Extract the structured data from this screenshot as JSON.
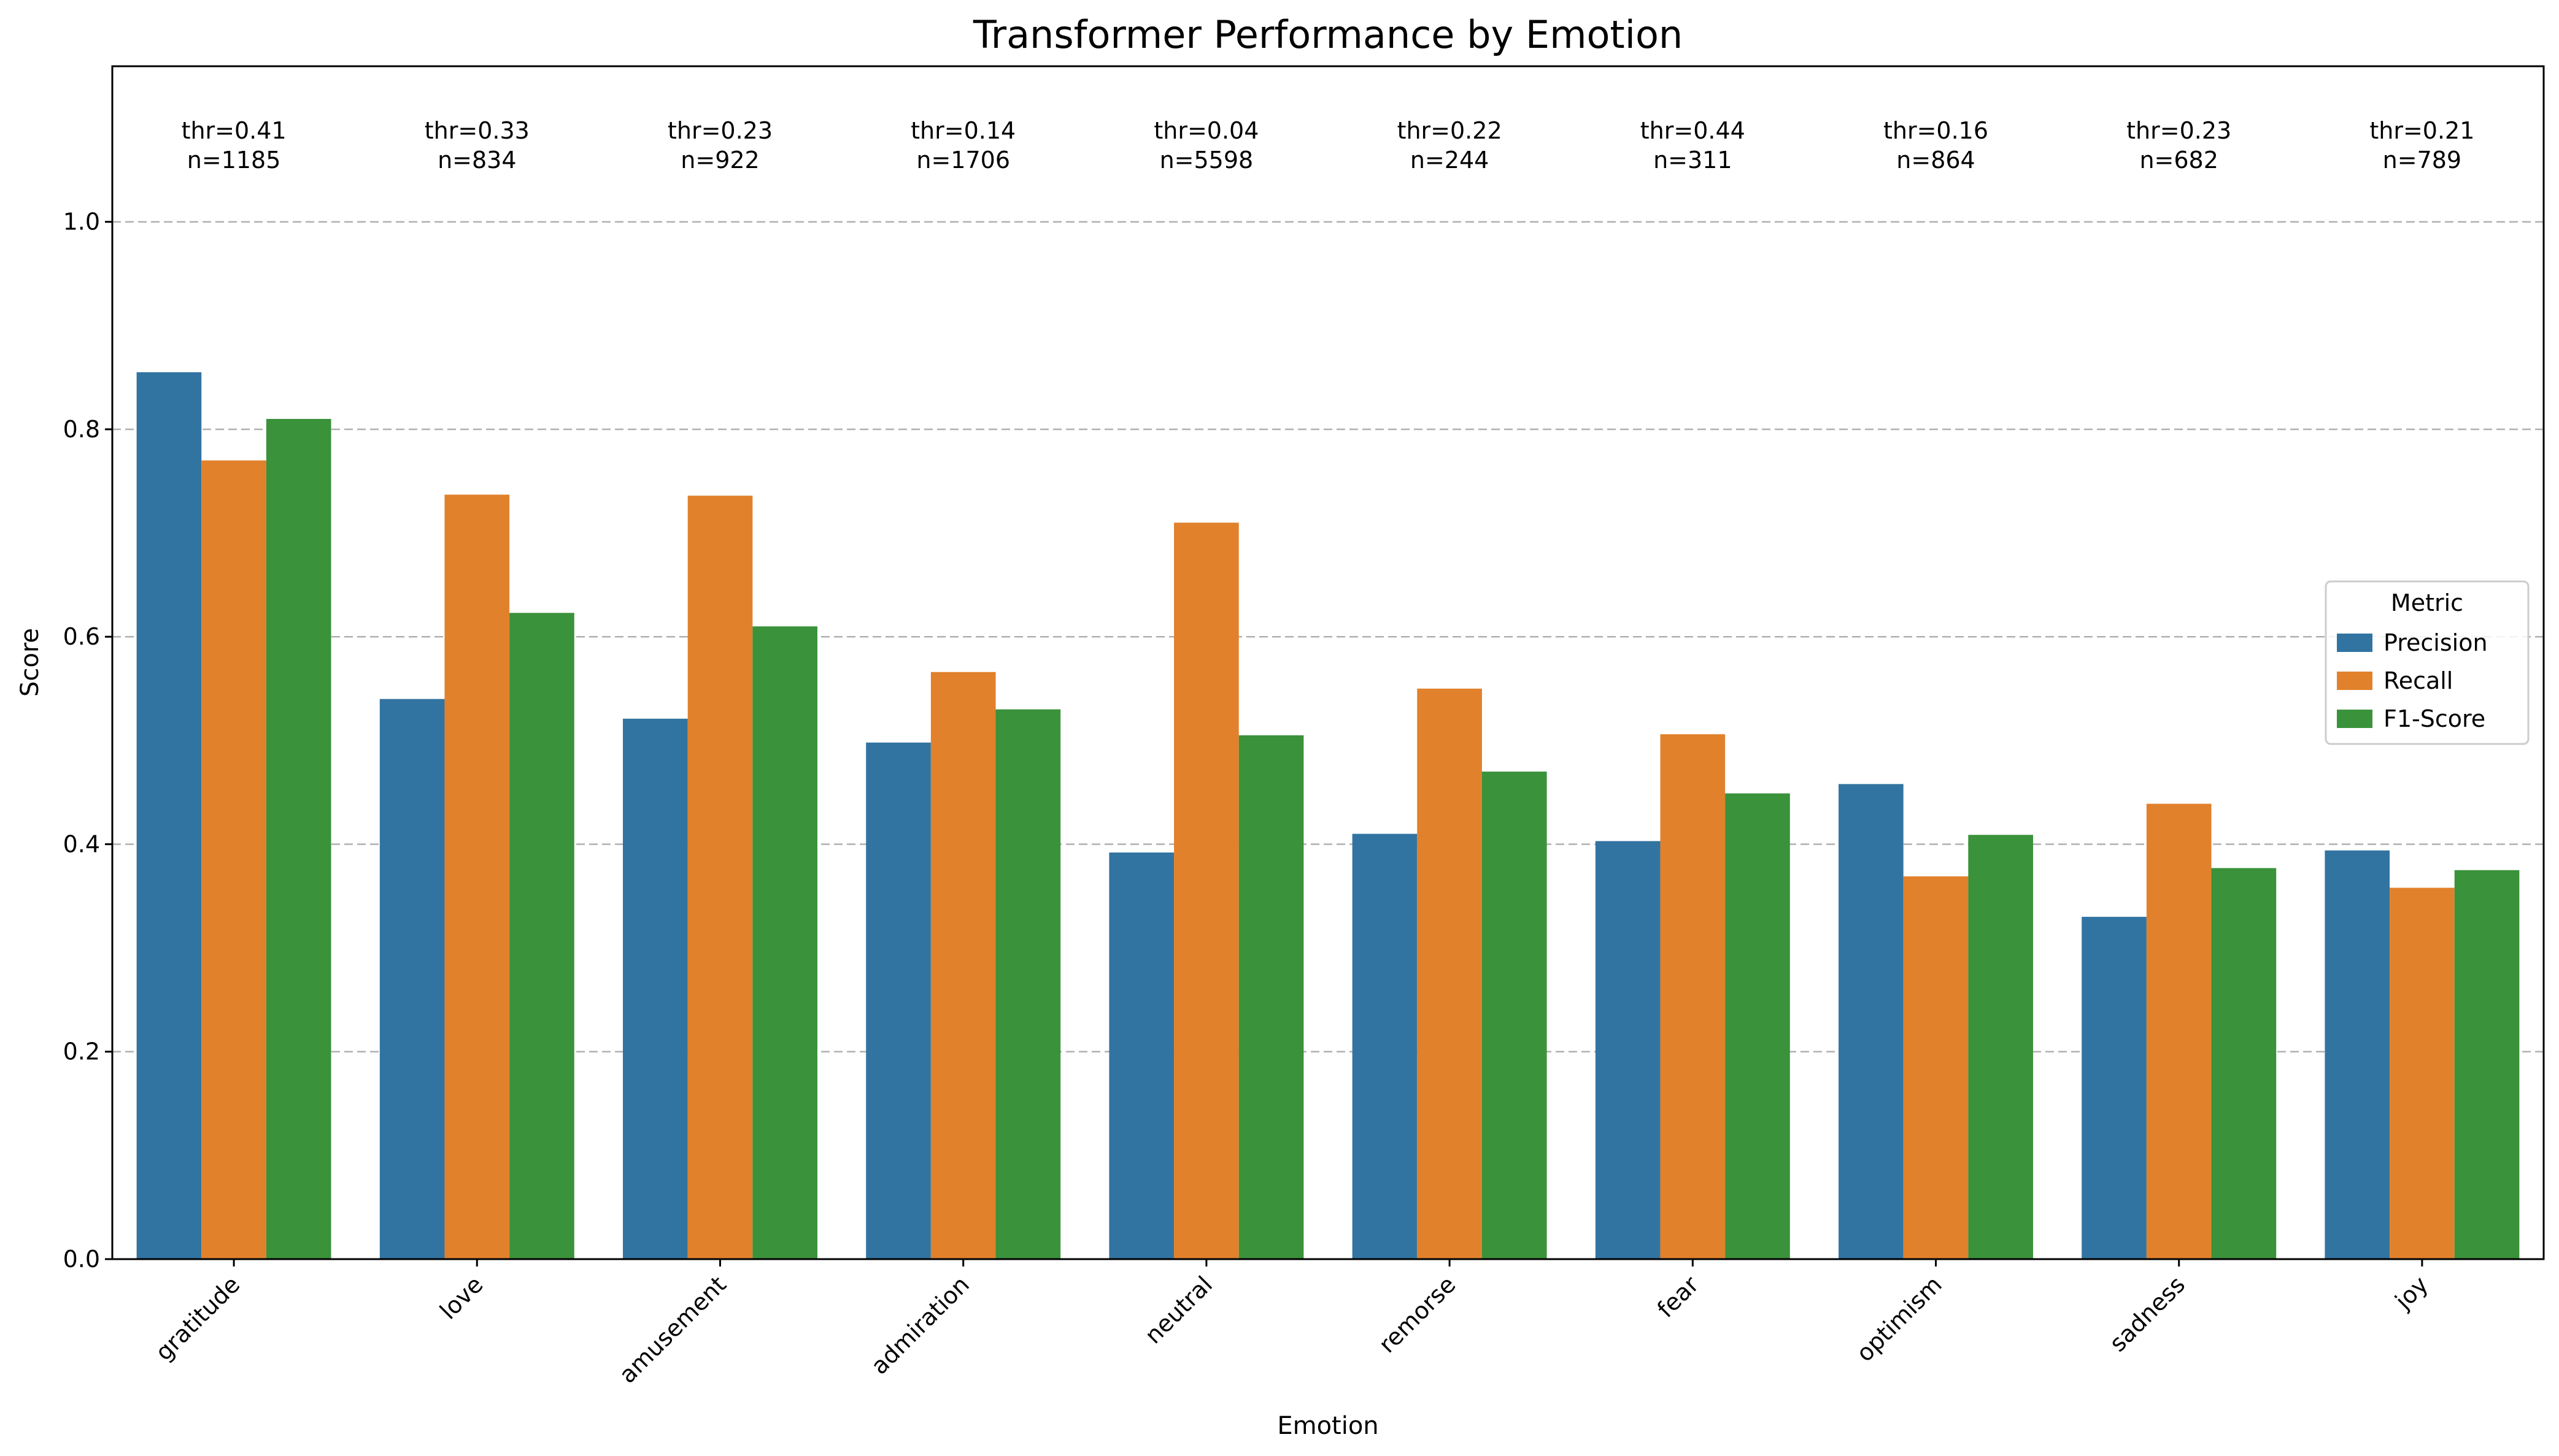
{
  "chart_data": {
    "type": "bar",
    "title": "Transformer Performance by Emotion",
    "xlabel": "Emotion",
    "ylabel": "Score",
    "ylim": [
      0,
      1.15
    ],
    "yticks": [
      "0.0",
      "0.2",
      "0.4",
      "0.6",
      "0.8",
      "1.0"
    ],
    "grid": true,
    "categories": [
      "gratitude",
      "love",
      "amusement",
      "admiration",
      "neutral",
      "remorse",
      "fear",
      "optimism",
      "sadness",
      "joy"
    ],
    "series": [
      {
        "name": "Precision",
        "color": "#3274a1",
        "values": [
          0.855,
          0.54,
          0.521,
          0.498,
          0.392,
          0.41,
          0.403,
          0.458,
          0.33,
          0.394
        ]
      },
      {
        "name": "Recall",
        "color": "#e1812c",
        "values": [
          0.77,
          0.737,
          0.736,
          0.566,
          0.71,
          0.55,
          0.506,
          0.369,
          0.439,
          0.358
        ]
      },
      {
        "name": "F1-Score",
        "color": "#3a923a",
        "values": [
          0.81,
          0.623,
          0.61,
          0.53,
          0.505,
          0.47,
          0.449,
          0.409,
          0.377,
          0.375
        ]
      }
    ],
    "annotations": [
      {
        "thr": "thr=0.41",
        "n": "n=1185"
      },
      {
        "thr": "thr=0.33",
        "n": "n=834"
      },
      {
        "thr": "thr=0.23",
        "n": "n=922"
      },
      {
        "thr": "thr=0.14",
        "n": "n=1706"
      },
      {
        "thr": "thr=0.04",
        "n": "n=5598"
      },
      {
        "thr": "thr=0.22",
        "n": "n=244"
      },
      {
        "thr": "thr=0.44",
        "n": "n=311"
      },
      {
        "thr": "thr=0.16",
        "n": "n=864"
      },
      {
        "thr": "thr=0.23",
        "n": "n=682"
      },
      {
        "thr": "thr=0.21",
        "n": "n=789"
      }
    ],
    "legend": {
      "title": "Metric",
      "placement": "center-right"
    }
  }
}
